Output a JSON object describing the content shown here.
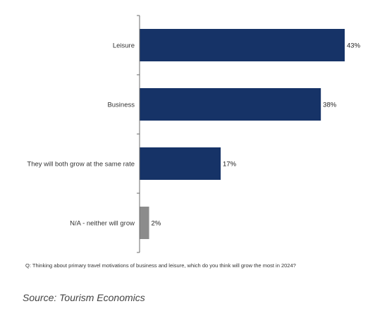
{
  "chart_data": {
    "type": "bar",
    "orientation": "horizontal",
    "categories": [
      "Leisure",
      "Business",
      "They will both grow at the same rate",
      "N/A - neither will grow"
    ],
    "values": [
      43,
      38,
      17,
      2
    ],
    "value_labels": [
      "43%",
      "38%",
      "17%",
      "2%"
    ],
    "bar_colors": [
      "#163367",
      "#163367",
      "#163367",
      "#8c8c8c"
    ],
    "xlim": [
      0,
      43
    ],
    "grid": false,
    "legend": "none"
  },
  "footnote": {
    "question": "Q: Thinking about primary travel motivations of business and leisure, which do you think will grow the most in 2024?",
    "source": "Source: Tourism Economics"
  }
}
